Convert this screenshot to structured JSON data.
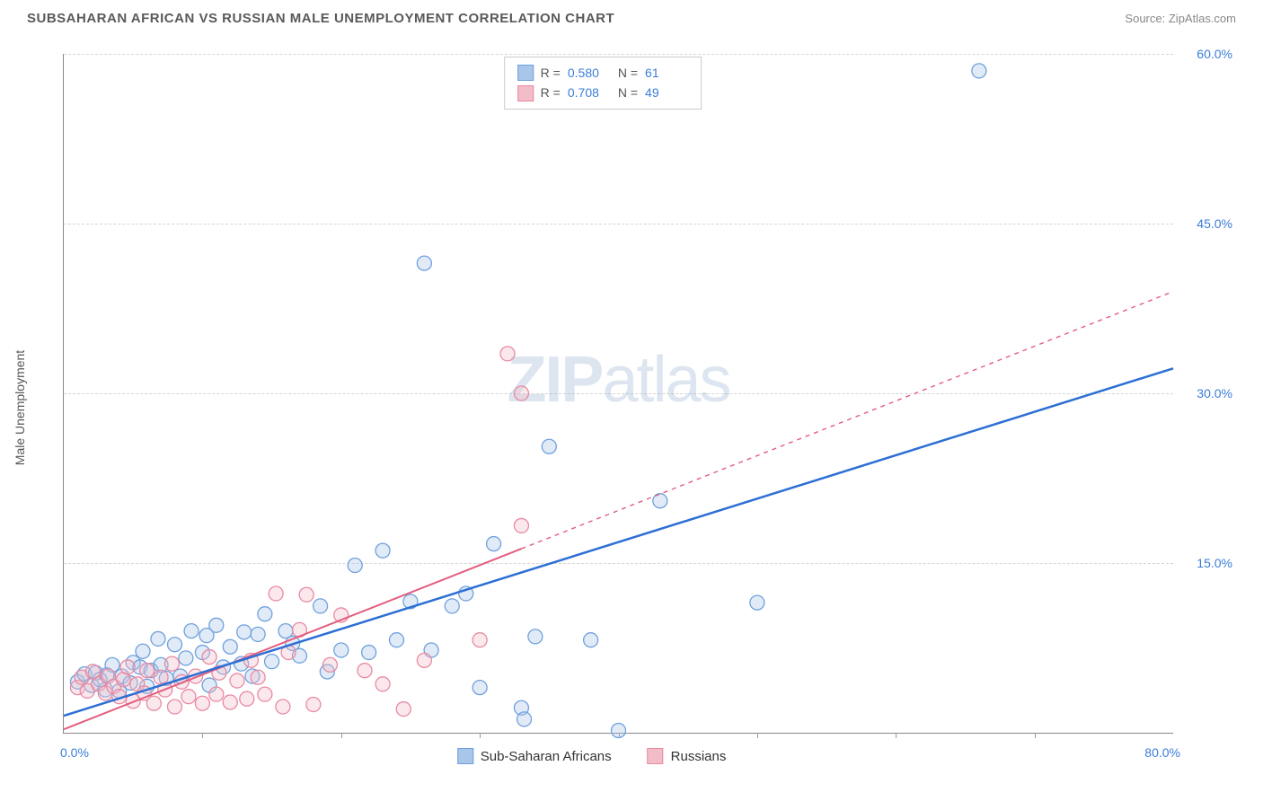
{
  "title": "SUBSAHARAN AFRICAN VS RUSSIAN MALE UNEMPLOYMENT CORRELATION CHART",
  "source_label": "Source:",
  "source_value": "ZipAtlas.com",
  "y_axis_label": "Male Unemployment",
  "watermark_bold": "ZIP",
  "watermark_light": "atlas",
  "chart": {
    "type": "scatter",
    "xlim": [
      0,
      80
    ],
    "ylim": [
      0,
      60
    ],
    "x_ticks_minor": [
      0,
      10,
      20,
      30,
      40,
      50,
      60,
      70,
      80
    ],
    "y_gridlines": [
      15,
      30,
      45,
      60
    ],
    "x_tick_labels": {
      "left": "0.0%",
      "right": "80.0%"
    },
    "y_tick_labels": [
      "15.0%",
      "30.0%",
      "45.0%",
      "60.0%"
    ],
    "background_color": "#ffffff",
    "grid_color": "#d5d5d5",
    "marker_radius": 8,
    "marker_fill_opacity": 0.35,
    "marker_stroke_width": 1.3,
    "series": [
      {
        "name": "Sub-Saharan Africans",
        "color_fill": "#a8c5ea",
        "color_stroke": "#6fa0dd",
        "r_value": "0.580",
        "n_value": "61",
        "trend": {
          "x1": 0,
          "y1": 1.5,
          "x2": 80,
          "y2": 32.2,
          "color": "#2d6fd4",
          "width": 2.5,
          "dash_from_x": null
        },
        "points": [
          [
            1,
            4.5
          ],
          [
            1.5,
            5.2
          ],
          [
            2,
            4.2
          ],
          [
            2.3,
            5.3
          ],
          [
            2.6,
            4.7
          ],
          [
            3,
            3.8
          ],
          [
            3.1,
            5.1
          ],
          [
            3.5,
            6.0
          ],
          [
            4,
            3.7
          ],
          [
            4.2,
            5.0
          ],
          [
            4.8,
            4.4
          ],
          [
            5,
            6.2
          ],
          [
            5.5,
            5.8
          ],
          [
            5.7,
            7.2
          ],
          [
            6,
            4.1
          ],
          [
            6.3,
            5.5
          ],
          [
            6.8,
            8.3
          ],
          [
            7,
            6.0
          ],
          [
            7.4,
            4.8
          ],
          [
            8,
            7.8
          ],
          [
            8.4,
            5.0
          ],
          [
            8.8,
            6.6
          ],
          [
            9.2,
            9.0
          ],
          [
            10,
            7.1
          ],
          [
            10.3,
            8.6
          ],
          [
            10.5,
            4.2
          ],
          [
            11,
            9.5
          ],
          [
            11.5,
            5.8
          ],
          [
            12,
            7.6
          ],
          [
            12.8,
            6.1
          ],
          [
            13,
            8.9
          ],
          [
            13.6,
            5.0
          ],
          [
            14,
            8.7
          ],
          [
            14.5,
            10.5
          ],
          [
            15,
            6.3
          ],
          [
            16,
            9.0
          ],
          [
            16.5,
            7.9
          ],
          [
            17,
            6.8
          ],
          [
            18.5,
            11.2
          ],
          [
            19,
            5.4
          ],
          [
            20,
            7.3
          ],
          [
            21,
            14.8
          ],
          [
            22,
            7.1
          ],
          [
            23,
            16.1
          ],
          [
            24,
            8.2
          ],
          [
            25,
            11.6
          ],
          [
            26.5,
            7.3
          ],
          [
            26,
            41.5
          ],
          [
            28,
            11.2
          ],
          [
            29,
            12.3
          ],
          [
            30,
            4.0
          ],
          [
            31,
            16.7
          ],
          [
            33,
            2.2
          ],
          [
            33.2,
            1.2
          ],
          [
            34,
            8.5
          ],
          [
            35,
            25.3
          ],
          [
            38,
            8.2
          ],
          [
            40,
            0.2
          ],
          [
            43,
            20.5
          ],
          [
            50,
            11.5
          ],
          [
            66,
            58.5
          ]
        ]
      },
      {
        "name": "Russians",
        "color_fill": "#f3bcc9",
        "color_stroke": "#e88aa2",
        "r_value": "0.708",
        "n_value": "49",
        "trend": {
          "x1": 0,
          "y1": 0.3,
          "x2": 80,
          "y2": 39.0,
          "color": "#e35d7f",
          "width": 2,
          "dash_from_x": 33
        },
        "points": [
          [
            1,
            4.0
          ],
          [
            1.3,
            4.9
          ],
          [
            1.7,
            3.7
          ],
          [
            2.1,
            5.4
          ],
          [
            2.5,
            4.3
          ],
          [
            3,
            3.5
          ],
          [
            3.2,
            5.0
          ],
          [
            3.6,
            4.1
          ],
          [
            4,
            3.2
          ],
          [
            4.3,
            4.7
          ],
          [
            4.6,
            5.8
          ],
          [
            5,
            2.8
          ],
          [
            5.3,
            4.3
          ],
          [
            5.8,
            3.5
          ],
          [
            6,
            5.5
          ],
          [
            6.5,
            2.6
          ],
          [
            7,
            4.9
          ],
          [
            7.3,
            3.8
          ],
          [
            7.8,
            6.1
          ],
          [
            8,
            2.3
          ],
          [
            8.5,
            4.5
          ],
          [
            9,
            3.2
          ],
          [
            9.5,
            5.0
          ],
          [
            10,
            2.6
          ],
          [
            10.5,
            6.7
          ],
          [
            11,
            3.4
          ],
          [
            11.2,
            5.3
          ],
          [
            12,
            2.7
          ],
          [
            12.5,
            4.6
          ],
          [
            13.2,
            3.0
          ],
          [
            13.5,
            6.4
          ],
          [
            14,
            4.9
          ],
          [
            14.5,
            3.4
          ],
          [
            15.3,
            12.3
          ],
          [
            15.8,
            2.3
          ],
          [
            16.2,
            7.1
          ],
          [
            17,
            9.1
          ],
          [
            17.5,
            12.2
          ],
          [
            18,
            2.5
          ],
          [
            19.2,
            6.0
          ],
          [
            20,
            10.4
          ],
          [
            21.7,
            5.5
          ],
          [
            23,
            4.3
          ],
          [
            24.5,
            2.1
          ],
          [
            26,
            6.4
          ],
          [
            30,
            8.2
          ],
          [
            32,
            33.5
          ],
          [
            33,
            30.0
          ],
          [
            33,
            18.3
          ]
        ]
      }
    ]
  },
  "legend_bottom": [
    {
      "label": "Sub-Saharan Africans",
      "fill": "#a8c5ea",
      "stroke": "#6fa0dd"
    },
    {
      "label": "Russians",
      "fill": "#f3bcc9",
      "stroke": "#e88aa2"
    }
  ],
  "legend_top_labels": {
    "r": "R =",
    "n": "N ="
  }
}
